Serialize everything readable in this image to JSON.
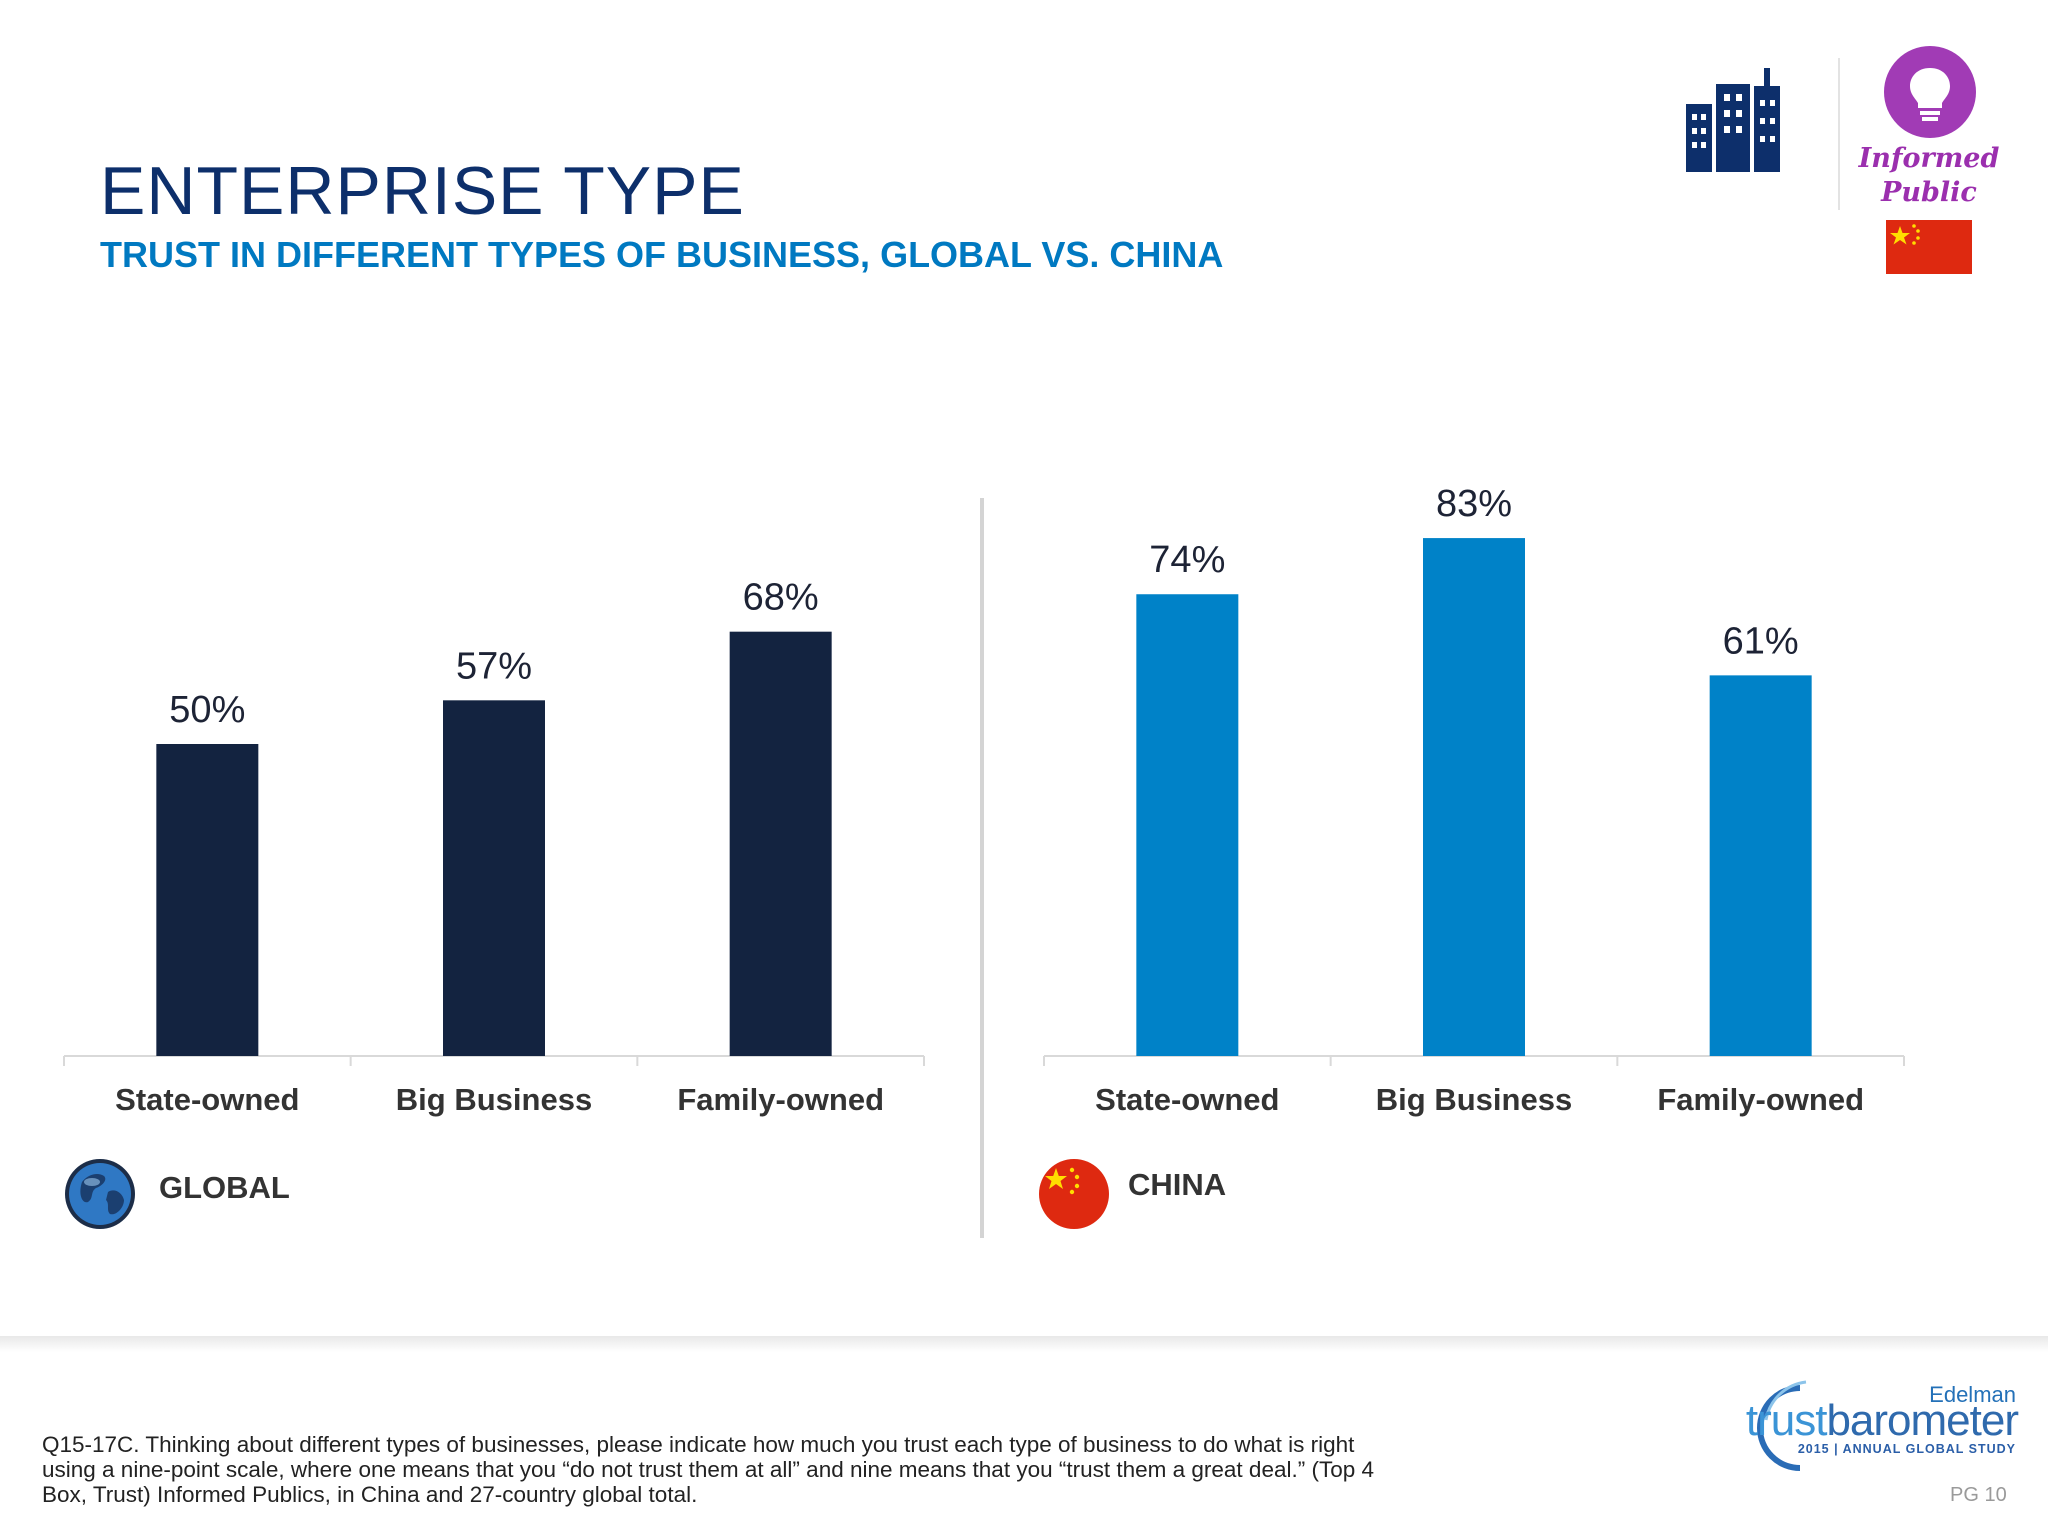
{
  "header": {
    "title": "ENTERPRISE TYPE",
    "subtitle": "TRUST IN DIFFERENT TYPES OF BUSINESS, GLOBAL VS. CHINA",
    "badge_text": "Informed Public"
  },
  "colors": {
    "global_bar": "#132340",
    "china_bar": "#0082c8",
    "title": "#0d2f6b",
    "subtitle": "#0079c1",
    "badge": "#9b2fae"
  },
  "icons": [
    "city-buildings-icon",
    "lightbulb-icon",
    "china-flag-icon",
    "globe-icon",
    "china-flag-circle-icon"
  ],
  "chart_data": [
    {
      "type": "bar",
      "categories": [
        "State-owned",
        "Big Business",
        "Family-owned"
      ],
      "values": [
        50,
        57,
        68
      ],
      "labels": [
        "50%",
        "57%",
        "68%"
      ],
      "ylim": [
        0,
        100
      ],
      "grid": false,
      "section_label": "GLOBAL"
    },
    {
      "type": "bar",
      "categories": [
        "State-owned",
        "Big Business",
        "Family-owned"
      ],
      "values": [
        74,
        83,
        61
      ],
      "labels": [
        "74%",
        "83%",
        "61%"
      ],
      "ylim": [
        0,
        100
      ],
      "grid": false,
      "section_label": "CHINA"
    }
  ],
  "footer": {
    "footnote": "Q15-17C. Thinking about different types of businesses, please indicate how much you trust each type of business to do what is right using a nine-point scale, where one means that you “do not trust them at all” and nine means that you “trust them a great deal.” (Top 4 Box, Trust) Informed Publics, in China and 27-country global total.",
    "page": "PG 10",
    "logo_brand": "Edelman",
    "logo_word_a": "trust",
    "logo_word_b": "barometer",
    "logo_tagline": "2015 | ANNUAL GLOBAL STUDY"
  }
}
